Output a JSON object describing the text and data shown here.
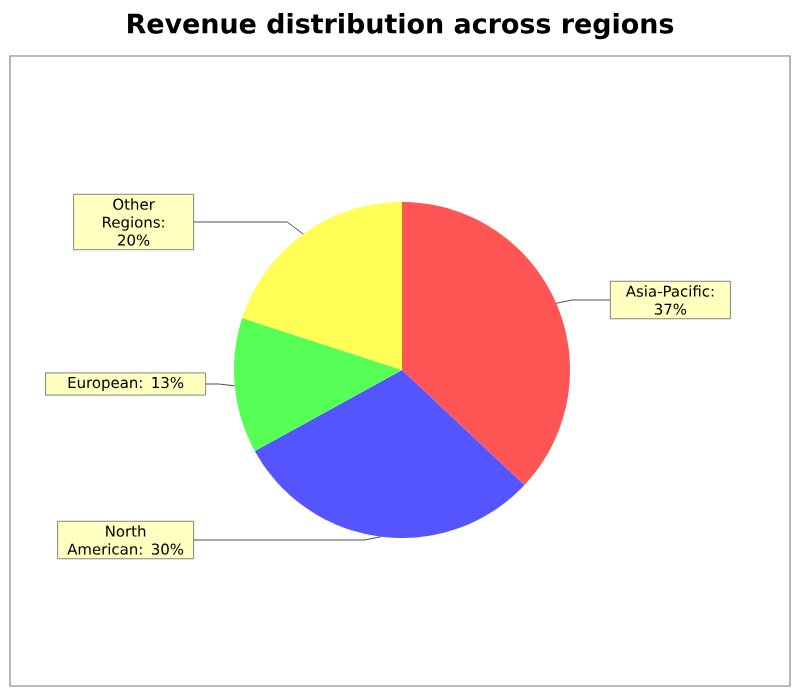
{
  "chart_data": {
    "type": "pie",
    "title": "Revenue distribution across regions",
    "categories": [
      "Asia-Pacific",
      "North American",
      "European",
      "Other Regions"
    ],
    "values": [
      37,
      30,
      13,
      20
    ],
    "value_labels": [
      ": 37%",
      ": 30%",
      ": 13%",
      ": 20%"
    ],
    "colors": [
      "#ff5555",
      "#5555ff",
      "#55ff55",
      "#ffff55"
    ]
  }
}
